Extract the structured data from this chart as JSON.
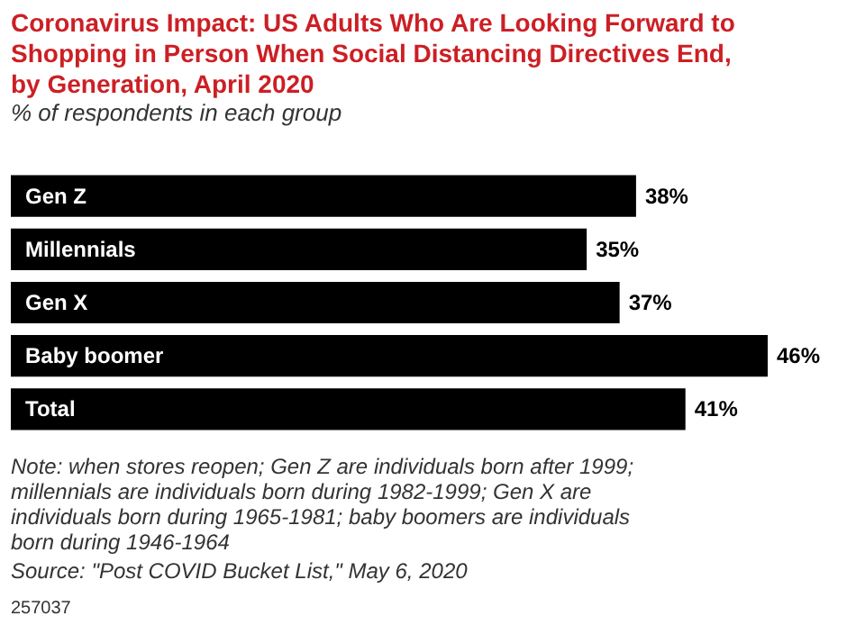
{
  "chart_data": {
    "type": "bar",
    "orientation": "horizontal",
    "title": "Coronavirus Impact: US Adults Who Are Looking Forward to Shopping in Person When Social Distancing Directives End, by Generation, April 2020",
    "subtitle": "% of respondents in each group",
    "categories": [
      "Gen Z",
      "Millennials",
      "Gen X",
      "Baby boomer",
      "Total"
    ],
    "values": [
      38,
      35,
      37,
      46,
      41
    ],
    "value_labels": [
      "38%",
      "35%",
      "37%",
      "46%",
      "41%"
    ],
    "color": "#000000",
    "annotations": [
      "Note: when stores reopen; Gen Z are individuals born after 1999; millennials are individuals born during 1982-1999; Gen X are individuals born during 1965-1981; baby boomers are individuals born during 1946-1964",
      "Source: \"Post COVID Bucket List,\" May 6, 2020",
      "257037"
    ]
  }
}
